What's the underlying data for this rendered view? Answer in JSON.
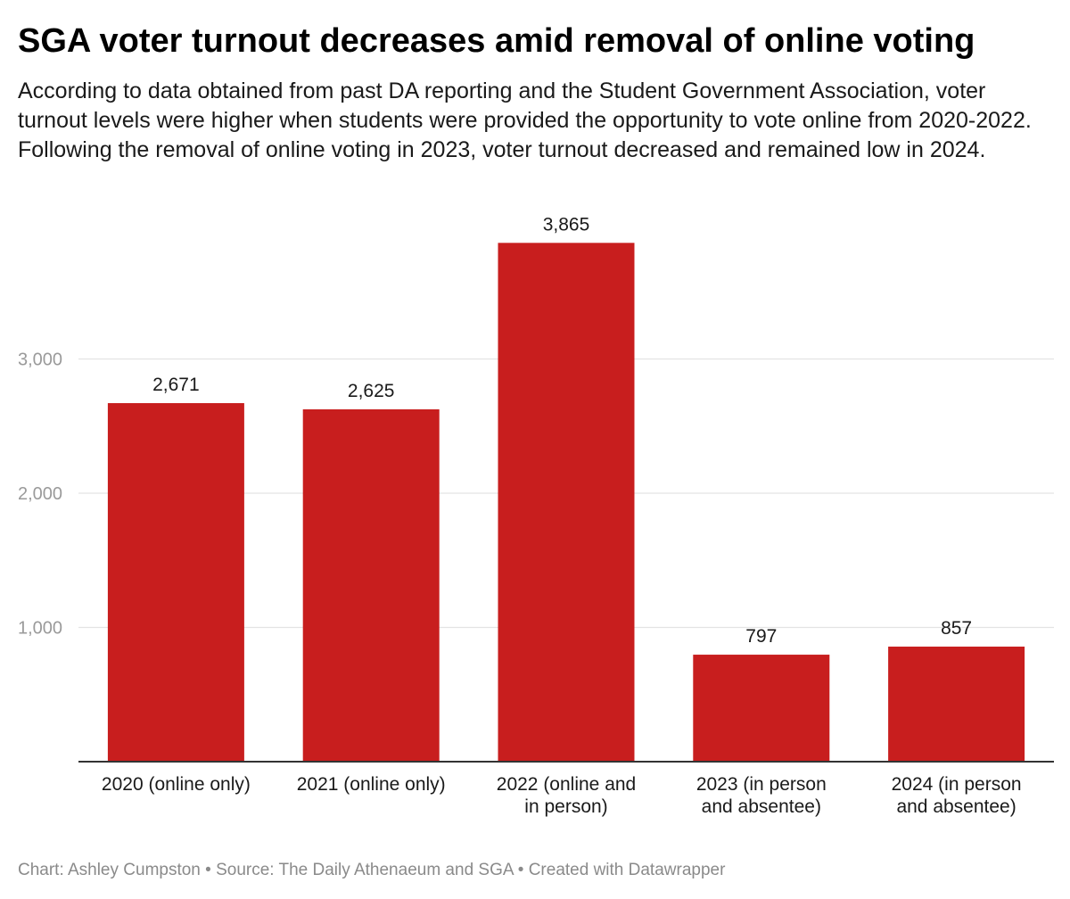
{
  "header": {
    "title": "SGA voter turnout decreases amid removal of online voting",
    "subtitle": "According to data obtained from past DA reporting and the Student Government Association, voter turnout levels were higher when students were provided the opportunity to vote online from 2020-2022. Following the removal of online voting in 2023, voter turnout decreased and remained low in 2024."
  },
  "footer": {
    "text": "Chart: Ashley Cumpston • Source: The Daily Athenaeum and SGA • Created with Datawrapper"
  },
  "colors": {
    "bar": "#c81e1e",
    "grid": "#e3e3e3",
    "axis": "#333333",
    "tick_text": "#9a9a9a"
  },
  "chart_data": {
    "type": "bar",
    "title": "SGA voter turnout decreases amid removal of online voting",
    "xlabel": "",
    "ylabel": "",
    "categories": [
      [
        "2020 (online only)"
      ],
      [
        "2021 (online only)"
      ],
      [
        "2022 (online and",
        "in person)"
      ],
      [
        "2023 (in person",
        "and absentee)"
      ],
      [
        "2024 (in person",
        "and absentee)"
      ]
    ],
    "values": [
      2671,
      2625,
      3865,
      797,
      857
    ],
    "value_labels": [
      "2,671",
      "2,625",
      "3,865",
      "797",
      "857"
    ],
    "yticks": [
      1000,
      2000,
      3000
    ],
    "ytick_labels": [
      "1,000",
      "2,000",
      "3,000"
    ],
    "ylim": [
      0,
      3865
    ],
    "grid": true
  }
}
